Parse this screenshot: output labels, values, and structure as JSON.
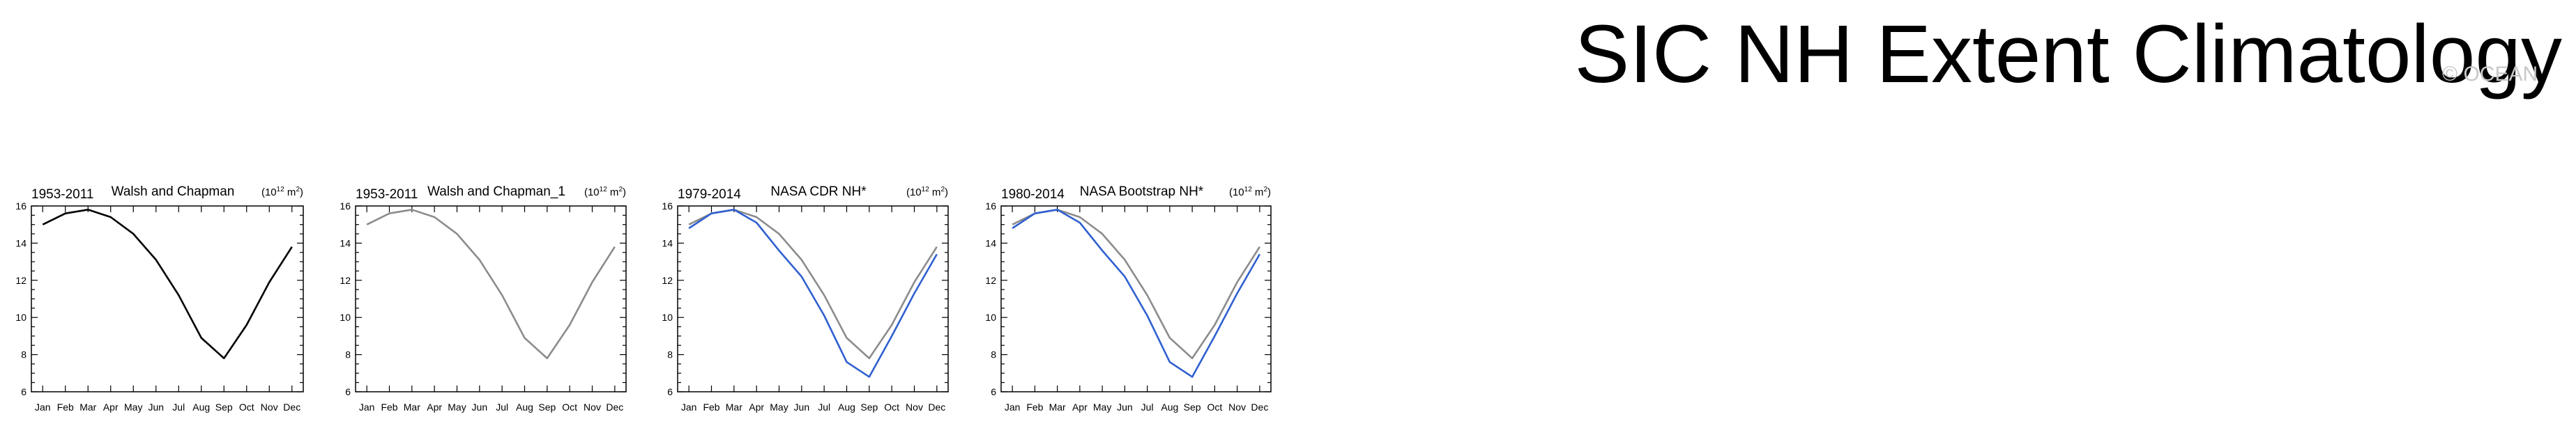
{
  "title": "SIC NH Extent Climatology",
  "watermark": "© OCEAN",
  "colors": {
    "primary": "#000000",
    "reference": "#8c8c8c",
    "observed": "#3060d0"
  },
  "chart_data": [
    {
      "type": "line",
      "period": "1953-2011",
      "title": "Walsh and Chapman",
      "units_base": "(10",
      "units_exp": "12",
      "units_tail": " m",
      "units_sq": "2",
      "units_close": ")",
      "x": [
        "Jan",
        "Feb",
        "Mar",
        "Apr",
        "May",
        "Jun",
        "Jul",
        "Aug",
        "Sep",
        "Oct",
        "Nov",
        "Dec"
      ],
      "ylim": [
        6,
        16
      ],
      "yticks": [
        "6",
        "8",
        "10",
        "12",
        "14",
        "16"
      ],
      "series": [
        {
          "style": "primary",
          "values": [
            15.0,
            15.6,
            15.8,
            15.4,
            14.5,
            13.1,
            11.2,
            8.9,
            7.8,
            9.6,
            11.9,
            13.8
          ]
        }
      ]
    },
    {
      "type": "line",
      "period": "1953-2011",
      "title": "Walsh and Chapman_1",
      "units_base": "(10",
      "units_exp": "12",
      "units_tail": " m",
      "units_sq": "2",
      "units_close": ")",
      "x": [
        "Jan",
        "Feb",
        "Mar",
        "Apr",
        "May",
        "Jun",
        "Jul",
        "Aug",
        "Sep",
        "Oct",
        "Nov",
        "Dec"
      ],
      "ylim": [
        6,
        16
      ],
      "yticks": [
        "6",
        "8",
        "10",
        "12",
        "14",
        "16"
      ],
      "series": [
        {
          "style": "reference",
          "values": [
            15.0,
            15.6,
            15.8,
            15.4,
            14.5,
            13.1,
            11.2,
            8.9,
            7.8,
            9.6,
            11.9,
            13.8
          ]
        }
      ]
    },
    {
      "type": "line",
      "period": "1979-2014",
      "title": "NASA CDR NH*",
      "units_base": "(10",
      "units_exp": "12",
      "units_tail": " m",
      "units_sq": "2",
      "units_close": ")",
      "x": [
        "Jan",
        "Feb",
        "Mar",
        "Apr",
        "May",
        "Jun",
        "Jul",
        "Aug",
        "Sep",
        "Oct",
        "Nov",
        "Dec"
      ],
      "ylim": [
        6,
        16
      ],
      "yticks": [
        "6",
        "8",
        "10",
        "12",
        "14",
        "16"
      ],
      "series": [
        {
          "style": "reference",
          "values": [
            15.0,
            15.6,
            15.8,
            15.4,
            14.5,
            13.1,
            11.2,
            8.9,
            7.8,
            9.6,
            11.9,
            13.8
          ]
        },
        {
          "style": "observed",
          "values": [
            14.8,
            15.6,
            15.8,
            15.1,
            13.6,
            12.2,
            10.1,
            7.6,
            6.8,
            9.0,
            11.3,
            13.4
          ]
        }
      ]
    },
    {
      "type": "line",
      "period": "1980-2014",
      "title": "NASA Bootstrap NH*",
      "units_base": "(10",
      "units_exp": "12",
      "units_tail": " m",
      "units_sq": "2",
      "units_close": ")",
      "x": [
        "Jan",
        "Feb",
        "Mar",
        "Apr",
        "May",
        "Jun",
        "Jul",
        "Aug",
        "Sep",
        "Oct",
        "Nov",
        "Dec"
      ],
      "ylim": [
        6,
        16
      ],
      "yticks": [
        "6",
        "8",
        "10",
        "12",
        "14",
        "16"
      ],
      "series": [
        {
          "style": "reference",
          "values": [
            15.0,
            15.6,
            15.8,
            15.4,
            14.5,
            13.1,
            11.2,
            8.9,
            7.8,
            9.6,
            11.9,
            13.8
          ]
        },
        {
          "style": "observed",
          "values": [
            14.8,
            15.6,
            15.8,
            15.1,
            13.6,
            12.2,
            10.1,
            7.6,
            6.8,
            9.0,
            11.3,
            13.4
          ]
        }
      ]
    }
  ]
}
